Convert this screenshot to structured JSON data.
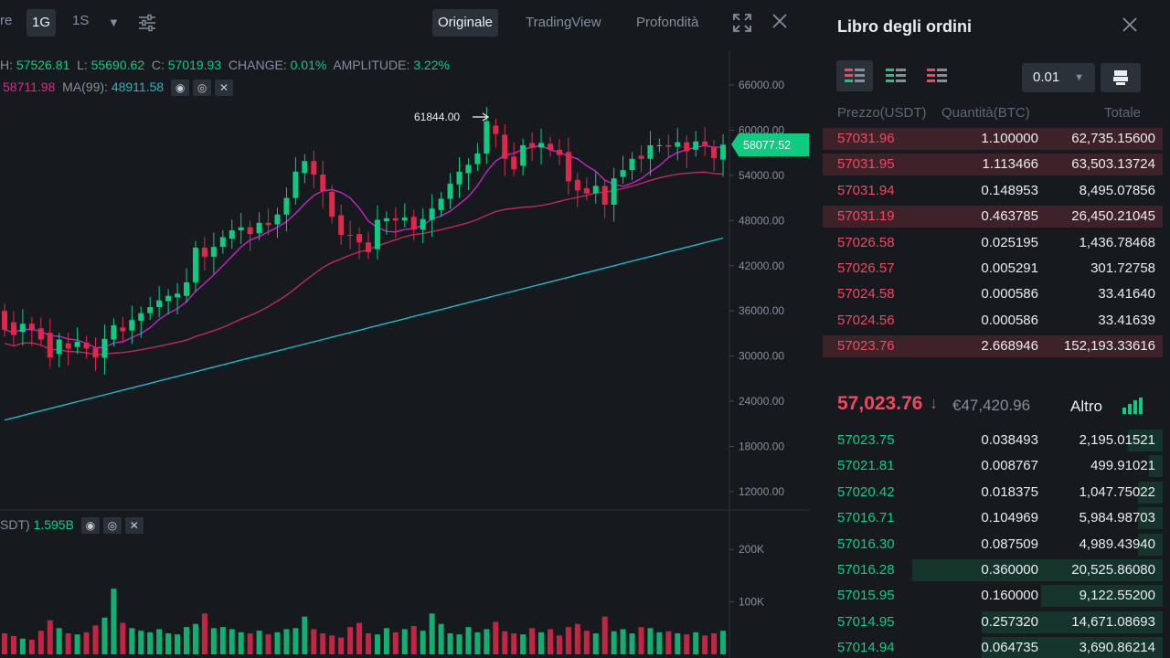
{
  "toolbar": {
    "partial_left": "re",
    "intervals": [
      "1G",
      "1S"
    ],
    "active_interval": "1G",
    "views": [
      "Originale",
      "TradingView",
      "Profondità"
    ],
    "active_view": "Originale"
  },
  "ohlc": {
    "h_label": "H:",
    "h_value": "57526.81",
    "l_label": "L:",
    "l_value": "55690.62",
    "c_label": "C:",
    "c_value": "57019.93",
    "change_label": "CHANGE:",
    "change_value": "0.01%",
    "amplitude_label": "AMPLITUDE:",
    "amplitude_value": "3.22%"
  },
  "ma": {
    "ma25_value": "58711.98",
    "ma99_label": "MA(99):",
    "ma99_value": "48911.58"
  },
  "price_axis": [
    "66000.00",
    "60000.00",
    "54000.00",
    "48000.00",
    "42000.00",
    "36000.00",
    "30000.00",
    "24000.00",
    "18000.00",
    "12000.00"
  ],
  "high_marker": "61844.00",
  "current_price_tag": "58077.52",
  "volume": {
    "label": "SDT)",
    "value": "1.595B",
    "axis": [
      "200K",
      "100K"
    ]
  },
  "chart_data": {
    "type": "candlestick",
    "y_range": [
      12000,
      66000
    ],
    "last_price": 58077.52,
    "high_marker": 61844.0,
    "candles": [
      [
        36000,
        33500
      ],
      [
        34500,
        32800
      ],
      [
        33200,
        34300
      ],
      [
        34300,
        33600
      ],
      [
        33700,
        32200
      ],
      [
        33100,
        29800
      ],
      [
        30300,
        32200
      ],
      [
        31700,
        31000
      ],
      [
        31200,
        31900
      ],
      [
        31800,
        31000
      ],
      [
        31100,
        29800
      ],
      [
        29800,
        32300
      ],
      [
        32200,
        34100
      ],
      [
        33800,
        33300
      ],
      [
        33400,
        34800
      ],
      [
        34700,
        35700
      ],
      [
        35700,
        36500
      ],
      [
        36500,
        37400
      ],
      [
        37300,
        38000
      ],
      [
        37800,
        38300
      ],
      [
        38000,
        39800
      ],
      [
        39800,
        44400
      ],
      [
        44400,
        43200
      ],
      [
        43200,
        44500
      ],
      [
        44500,
        45800
      ],
      [
        45600,
        46700
      ],
      [
        46700,
        47100
      ],
      [
        47100,
        46200
      ],
      [
        46300,
        47700
      ],
      [
        47700,
        47400
      ],
      [
        47500,
        48800
      ],
      [
        48800,
        51000
      ],
      [
        51000,
        54500
      ],
      [
        54300,
        55900
      ],
      [
        55900,
        54100
      ],
      [
        54100,
        51900
      ],
      [
        51800,
        48500
      ],
      [
        48700,
        46100
      ],
      [
        46100,
        46000
      ],
      [
        46200,
        45100
      ],
      [
        45100,
        43800
      ],
      [
        44200,
        48100
      ],
      [
        47900,
        48300
      ],
      [
        48300,
        48000
      ],
      [
        48000,
        48400
      ],
      [
        48500,
        46800
      ],
      [
        46800,
        48200
      ],
      [
        48100,
        49600
      ],
      [
        49400,
        50900
      ],
      [
        50900,
        52900
      ],
      [
        52800,
        54500
      ],
      [
        54300,
        55400
      ],
      [
        55500,
        56900
      ],
      [
        56900,
        61200
      ],
      [
        60600,
        59500
      ],
      [
        59400,
        56200
      ],
      [
        56500,
        54800
      ],
      [
        55300,
        58000
      ],
      [
        58300,
        57700
      ],
      [
        57700,
        58300
      ],
      [
        58200,
        57400
      ],
      [
        57400,
        56700
      ],
      [
        57100,
        53200
      ],
      [
        53400,
        52000
      ],
      [
        52300,
        51600
      ],
      [
        51600,
        52600
      ],
      [
        52600,
        50100
      ],
      [
        50100,
        53600
      ],
      [
        53800,
        54700
      ],
      [
        54700,
        56200
      ],
      [
        56600,
        56200
      ],
      [
        56200,
        58000
      ],
      [
        58000,
        58000
      ],
      [
        58000,
        57800
      ],
      [
        57800,
        58400
      ],
      [
        58400,
        57200
      ],
      [
        57400,
        58500
      ],
      [
        58500,
        57900
      ],
      [
        57800,
        56300
      ],
      [
        56100,
        58077
      ]
    ],
    "volumes": [
      40,
      35,
      30,
      28,
      45,
      65,
      50,
      40,
      38,
      42,
      55,
      70,
      125,
      60,
      50,
      45,
      42,
      48,
      40,
      38,
      52,
      58,
      78,
      50,
      52,
      48,
      42,
      40,
      45,
      38,
      42,
      48,
      50,
      72,
      48,
      40,
      36,
      32,
      52,
      60,
      40,
      38,
      50,
      42,
      48,
      54,
      45,
      78,
      58,
      40,
      38,
      52,
      42,
      48,
      62,
      44,
      40,
      38,
      50,
      42,
      48,
      36,
      52,
      58,
      45,
      40,
      72,
      44,
      48,
      40,
      52,
      50,
      42,
      44,
      40,
      38,
      42,
      36,
      40,
      45
    ],
    "volume_max": 230
  },
  "orderbook": {
    "title": "Libro degli ordini",
    "precision": "0.01",
    "headers": {
      "price": "Prezzo(USDT)",
      "qty": "Quantità(BTC)",
      "total": "Totale"
    },
    "asks": [
      {
        "price": "57031.96",
        "qty": "1.100000",
        "total": "62,735.15600",
        "depth": 0.98
      },
      {
        "price": "57031.95",
        "qty": "1.113466",
        "total": "63,503.13724",
        "depth": 0.98
      },
      {
        "price": "57031.94",
        "qty": "0.148953",
        "total": "8,495.07856",
        "depth": 0
      },
      {
        "price": "57031.19",
        "qty": "0.463785",
        "total": "26,450.21045",
        "depth": 0.98
      },
      {
        "price": "57026.58",
        "qty": "0.025195",
        "total": "1,436.78468",
        "depth": 0
      },
      {
        "price": "57026.57",
        "qty": "0.005291",
        "total": "301.72758",
        "depth": 0
      },
      {
        "price": "57024.58",
        "qty": "0.000586",
        "total": "33.41640",
        "depth": 0
      },
      {
        "price": "57024.56",
        "qty": "0.000586",
        "total": "33.41639",
        "depth": 0
      },
      {
        "price": "57023.76",
        "qty": "2.668946",
        "total": "152,193.33616",
        "depth": 0.98
      }
    ],
    "last_price": "57,023.76",
    "last_arrow": "↓",
    "fiat_price": "€47,420.96",
    "more_label": "Altro",
    "bids": [
      {
        "price": "57023.75",
        "qty": "0.038493",
        "total": "2,195.01521",
        "depth": 0.1
      },
      {
        "price": "57021.81",
        "qty": "0.008767",
        "total": "499.91021",
        "depth": 0.04
      },
      {
        "price": "57020.42",
        "qty": "0.018375",
        "total": "1,047.75022",
        "depth": 0.07
      },
      {
        "price": "57016.71",
        "qty": "0.104969",
        "total": "5,984.98703",
        "depth": 0.07
      },
      {
        "price": "57016.30",
        "qty": "0.087509",
        "total": "4,989.43940",
        "depth": 0.07
      },
      {
        "price": "57016.28",
        "qty": "0.360000",
        "total": "20,525.86080",
        "depth": 0.72
      },
      {
        "price": "57015.95",
        "qty": "0.160000",
        "total": "9,122.55200",
        "depth": 0.35
      },
      {
        "price": "57014.95",
        "qty": "0.257320",
        "total": "14,671.08693",
        "depth": 0.52
      },
      {
        "price": "57014.94",
        "qty": "0.064735",
        "total": "3,690.86214",
        "depth": 0.52
      }
    ]
  },
  "colors": {
    "up": "#0ecb81",
    "down": "#f6465d",
    "candle_down": "#e0294a",
    "ma7": "#c724c7",
    "ma25": "#c2275f",
    "ma99": "#22b8c9",
    "panel_bg": "#161a1e"
  }
}
